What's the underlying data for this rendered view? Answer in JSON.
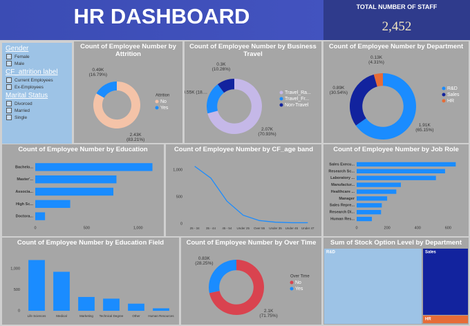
{
  "header": {
    "title": "HR DASHBOARD"
  },
  "kpi": {
    "label": "TOTAL NUMBER OF STAFF",
    "value": "2,452"
  },
  "slicers": [
    {
      "title": "Gender",
      "items": [
        "Female",
        "Male"
      ]
    },
    {
      "title": "CF_attrition label",
      "items": [
        "Current Employees",
        "Ex-Employees"
      ]
    },
    {
      "title": "Marital Status",
      "items": [
        "Divorced",
        "Married",
        "Single"
      ]
    }
  ],
  "chart_data": [
    {
      "type": "donut",
      "title": "Count of Employee Number by Attrition",
      "legend_title": "Attrition",
      "categories": [
        "No",
        "Yes"
      ],
      "values": [
        2430,
        490
      ],
      "value_labels": [
        "2.43K (83.21%)",
        "0.49K (16.79%)"
      ],
      "colors": [
        "#f4c3a8",
        "#1a8cff"
      ],
      "legend": "right"
    },
    {
      "type": "donut",
      "title": "Count of Employee Number by Business Travel",
      "categories": [
        "Travel_Ra...",
        "Travel_Fr...",
        "Non-Travel"
      ],
      "values": [
        2070,
        550,
        300
      ],
      "value_labels": [
        "2.07K (70.93%)",
        "0.55K (18....",
        "0.3K (10.26%)"
      ],
      "colors": [
        "#c5b8e8",
        "#1a8cff",
        "#12239e"
      ],
      "legend": "right"
    },
    {
      "type": "donut",
      "title": "Count of Employee Number by Department",
      "categories": [
        "R&D",
        "Sales",
        "HR"
      ],
      "values": [
        1910,
        890,
        130
      ],
      "value_labels": [
        "1.91K (65.15%)",
        "0.89K (30.54%)",
        "0.13K (4.31%)"
      ],
      "colors": [
        "#1a8cff",
        "#12239e",
        "#e66c37"
      ],
      "legend": "right"
    },
    {
      "type": "hbar",
      "title": "Count of Employee Number by Education",
      "categories": [
        "Bachelo...",
        "Master'...",
        "Associa...",
        "High Sc...",
        "Doctora..."
      ],
      "values": [
        1140,
        790,
        760,
        340,
        95
      ],
      "color": "#1a8cff",
      "xlim": [
        0,
        1170
      ],
      "xticks": [
        0,
        500,
        {
          "value": 1000,
          "label": "1,000"
        }
      ]
    },
    {
      "type": "line",
      "title": "Count of Employee Number by CF_age band",
      "categories": [
        "25 - 34",
        "35 - 44",
        "45 - 54",
        "Under 25",
        "Over 55",
        "Under 35",
        "Under 45",
        "Under 47"
      ],
      "values": [
        1070,
        850,
        420,
        160,
        60,
        30,
        20,
        20
      ],
      "color": "#1a8cff",
      "ylim": [
        0,
        1170
      ],
      "yticks": [
        0,
        500,
        {
          "value": 1000,
          "label": "1,000"
        }
      ]
    },
    {
      "type": "hbar",
      "title": "Count of Employee Number by Job Role",
      "categories": [
        "Sales Execu...",
        "Research Sc...",
        "Laboratory ...",
        "Manufactur...",
        "Healthcare ...",
        "Manager",
        "Sales Repre...",
        "Research Di...",
        "Human Res..."
      ],
      "values": [
        650,
        580,
        520,
        290,
        260,
        200,
        165,
        160,
        100
      ],
      "color": "#1a8cff",
      "xlim": [
        0,
        680
      ],
      "xticks": [
        0,
        200,
        400,
        600
      ]
    },
    {
      "type": "bar",
      "title": "Count of Employee Number by Education Field",
      "categories": [
        "Life Sciences",
        "Medical",
        "Marketing",
        "Technical Degree",
        "Other",
        "Human Resources"
      ],
      "values": [
        1210,
        930,
        330,
        290,
        170,
        60
      ],
      "color": "#1a8cff",
      "ylim": [
        0,
        1350
      ],
      "yticks": [
        0,
        500,
        {
          "value": 1000,
          "label": "1,000"
        }
      ]
    },
    {
      "type": "donut",
      "title": "Count of Employee Number by Over Time",
      "legend_title": "Over Time",
      "categories": [
        "No",
        "Yes"
      ],
      "values": [
        2100,
        830
      ],
      "value_labels": [
        "2.1K (71.75%)",
        "0.83K (28.25%)"
      ],
      "colors": [
        "#d9434f",
        "#1a8cff"
      ],
      "legend": "right"
    },
    {
      "type": "treemap",
      "title": "Sum of Stock Option Level by Department",
      "categories": [
        "R&D",
        "Sales",
        "HR"
      ],
      "values": [
        1550,
        640,
        80
      ],
      "colors": [
        "#9dc3e6",
        "#12239e",
        "#e66c37"
      ]
    }
  ]
}
